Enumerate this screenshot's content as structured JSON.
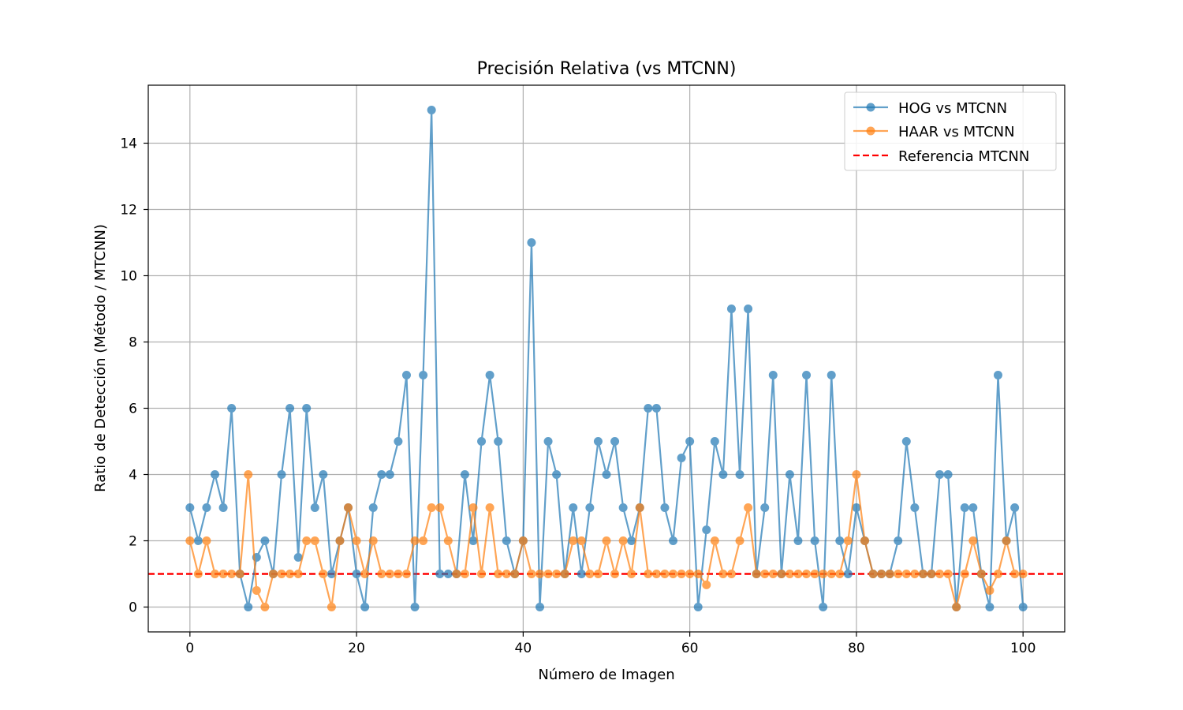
{
  "chart_data": {
    "type": "line",
    "title": "Precisión Relativa (vs MTCNN)",
    "xlabel": "Número de Imagen",
    "ylabel": "Ratio de Detección (Método / MTCNN)",
    "xlim": [
      -5,
      105
    ],
    "ylim": [
      -0.75,
      15.75
    ],
    "xticks": [
      0,
      20,
      40,
      60,
      80,
      100
    ],
    "yticks": [
      0,
      2,
      4,
      6,
      8,
      10,
      12,
      14
    ],
    "grid": true,
    "legend_position": "top-right",
    "series": [
      {
        "name": "HOG vs MTCNN",
        "color": "#1f77b4",
        "marker": "circle",
        "values": [
          3,
          2,
          3,
          4,
          3,
          6,
          1,
          0,
          1.5,
          2,
          1,
          4,
          6,
          1.5,
          6,
          3,
          4,
          1,
          2,
          3,
          1,
          0,
          3,
          4,
          4,
          5,
          7,
          0,
          7,
          15,
          1,
          1,
          1,
          4,
          2,
          5,
          7,
          5,
          2,
          1,
          2,
          11,
          0,
          5,
          4,
          1,
          3,
          1,
          3,
          5,
          4,
          5,
          3,
          2,
          3,
          6,
          6,
          3,
          2,
          4.5,
          5,
          0,
          2.33,
          5,
          4,
          9,
          4,
          9,
          1,
          3,
          7,
          1,
          4,
          2,
          7,
          2,
          0,
          7,
          2,
          1,
          3,
          2,
          1,
          1,
          1,
          2,
          5,
          3,
          1,
          1,
          4,
          4,
          0,
          3,
          3,
          1,
          0,
          7,
          2,
          3,
          0
        ]
      },
      {
        "name": "HAAR vs MTCNN",
        "color": "#ff7f0e",
        "marker": "circle",
        "values": [
          2,
          1,
          2,
          1,
          1,
          1,
          1,
          4,
          0.5,
          0,
          1,
          1,
          1,
          1,
          2,
          2,
          1,
          0,
          2,
          3,
          2,
          1,
          2,
          1,
          1,
          1,
          1,
          2,
          2,
          3,
          3,
          2,
          1,
          1,
          3,
          1,
          3,
          1,
          1,
          1,
          2,
          1,
          1,
          1,
          1,
          1,
          2,
          2,
          1,
          1,
          2,
          1,
          2,
          1,
          3,
          1,
          1,
          1,
          1,
          1,
          1,
          1,
          0.67,
          2,
          1,
          1,
          2,
          3,
          1,
          1,
          1,
          1,
          1,
          1,
          1,
          1,
          1,
          1,
          1,
          2,
          4,
          2,
          1,
          1,
          1,
          1,
          1,
          1,
          1,
          1,
          1,
          1,
          0,
          1,
          2,
          1,
          0.5,
          1,
          2,
          1,
          1
        ]
      }
    ],
    "reference_line": {
      "name": "Referencia MTCNN",
      "y": 1,
      "color": "#ff0000",
      "style": "dashed"
    }
  }
}
